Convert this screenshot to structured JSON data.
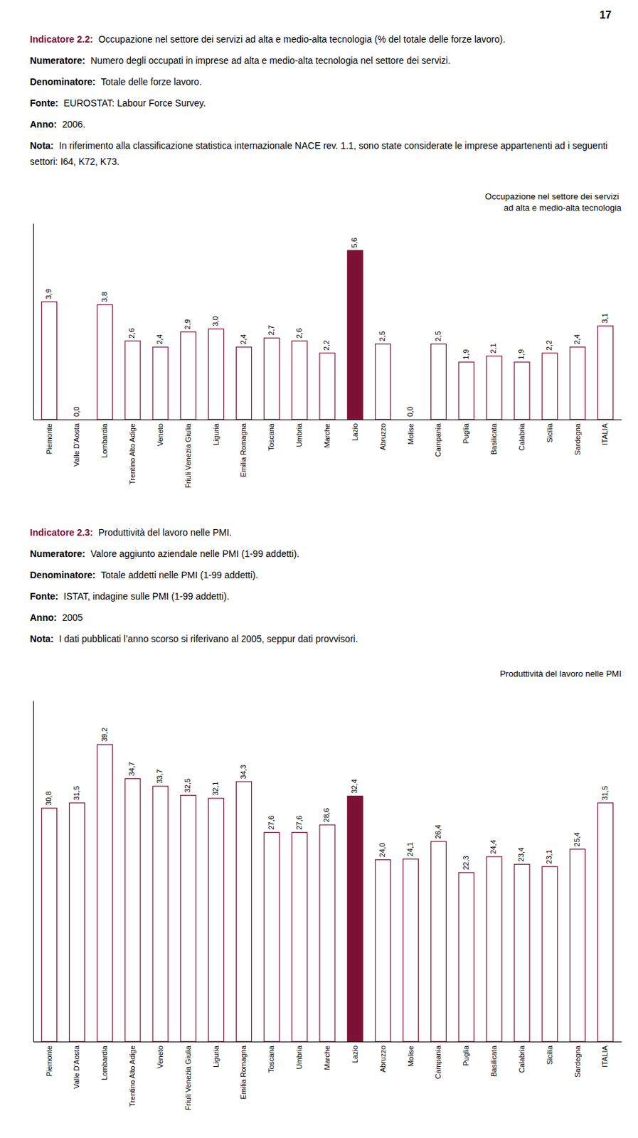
{
  "page_number": "17",
  "chart_data": [
    {
      "type": "bar",
      "title": "Occupazione nel settore dei servizi\nad alta e medio-alta tecnologia",
      "categories": [
        "Piemonte",
        "Valle D'Aosta",
        "Lombardia",
        "Trentino Alto Adige",
        "Veneto",
        "Friuli Venezia Giulia",
        "Liguria",
        "Emilia Romagna",
        "Toscana",
        "Umbria",
        "Marche",
        "Lazio",
        "Abruzzo",
        "Molise",
        "Campania",
        "Puglia",
        "Basilicata",
        "Calabria",
        "Sicilia",
        "Sardegna",
        "ITALIA"
      ],
      "values": [
        3.9,
        0.0,
        3.8,
        2.6,
        2.4,
        2.9,
        3.0,
        2.4,
        2.7,
        2.6,
        2.2,
        5.6,
        2.5,
        0.0,
        2.5,
        1.9,
        2.1,
        1.9,
        2.2,
        2.4,
        3.1
      ],
      "value_labels": [
        "3,9",
        "0,0",
        "3,8",
        "2,6",
        "2,4",
        "2,9",
        "3,0",
        "2,4",
        "2,7",
        "2,6",
        "2,2",
        "5,6",
        "2,5",
        "0,0",
        "2,5",
        "1,9",
        "2,1",
        "1,9",
        "2,2",
        "2,4",
        "3,1"
      ],
      "data_labels": true,
      "color": "#7d1035",
      "colors": [
        "#ffffff",
        "#ffffff",
        "#ffffff",
        "#ffffff",
        "#ffffff",
        "#ffffff",
        "#ffffff",
        "#ffffff",
        "#ffffff",
        "#ffffff",
        "#ffffff",
        "#7d1035",
        "#ffffff",
        "#ffffff",
        "#ffffff",
        "#ffffff",
        "#ffffff",
        "#ffffff",
        "#ffffff",
        "#ffffff",
        "#ffffff"
      ],
      "ylim": [
        0,
        6.5
      ],
      "tick_labels": "x",
      "grid": false,
      "annotations": [
        {
          "label": "Indicatore 2.2:",
          "text": "Occupazione nel settore dei servizi ad alta e medio-alta tecnologia (% del totale delle forze lavoro)."
        },
        {
          "label": "Numeratore:",
          "text": "Numero degli occupati in imprese ad alta e medio-alta tecnologia nel settore dei servizi."
        },
        {
          "label": "Denominatore:",
          "text": "Totale delle forze lavoro."
        },
        {
          "label": "Fonte:",
          "text": "EUROSTAT: Labour Force Survey."
        },
        {
          "label": "Anno:",
          "text": "2006."
        },
        {
          "label": "Nota:",
          "text": "In riferimento alla classificazione statistica internazionale NACE rev. 1.1, sono state considerate le imprese appartenenti ad i seguenti settori: I64, K72, K73."
        }
      ]
    },
    {
      "type": "bar",
      "title": "Produttività del lavoro nelle PMI",
      "categories": [
        "Piemonte",
        "Valle D'Aosta",
        "Lombardia",
        "Trentino Alto Adige",
        "Veneto",
        "Friuli Venezia Giulia",
        "Liguria",
        "Emilia Romagna",
        "Toscana",
        "Umbria",
        "Marche",
        "Lazio",
        "Abruzzo",
        "Molise",
        "Campania",
        "Puglia",
        "Basilicata",
        "Calabria",
        "Sicilia",
        "Sardegna",
        "ITALIA"
      ],
      "values": [
        30.8,
        31.5,
        39.2,
        34.7,
        33.7,
        32.5,
        32.1,
        34.3,
        27.6,
        27.6,
        28.6,
        32.4,
        24.0,
        24.1,
        26.4,
        22.3,
        24.4,
        23.4,
        23.1,
        25.4,
        31.5
      ],
      "value_labels": [
        "30,8",
        "31,5",
        "39,2",
        "34,7",
        "33,7",
        "32,5",
        "32,1",
        "34,3",
        "27,6",
        "27,6",
        "28,6",
        "32,4",
        "24,0",
        "24,1",
        "26,4",
        "22,3",
        "24,4",
        "23,4",
        "23,1",
        "25,4",
        "31,5"
      ],
      "data_labels": true,
      "color": "#7d1035",
      "colors": [
        "#ffffff",
        "#ffffff",
        "#ffffff",
        "#ffffff",
        "#ffffff",
        "#ffffff",
        "#ffffff",
        "#ffffff",
        "#ffffff",
        "#ffffff",
        "#ffffff",
        "#7d1035",
        "#ffffff",
        "#ffffff",
        "#ffffff",
        "#ffffff",
        "#ffffff",
        "#ffffff",
        "#ffffff",
        "#ffffff",
        "#ffffff"
      ],
      "ylim": [
        0,
        45
      ],
      "tick_labels": "x",
      "grid": false,
      "annotations": [
        {
          "label": "Indicatore 2.3:",
          "text": "Produttività del lavoro nelle PMI."
        },
        {
          "label": "Numeratore:",
          "text": "Valore aggiunto aziendale nelle PMI (1-99 addetti)."
        },
        {
          "label": "Denominatore:",
          "text": "Totale addetti nelle PMI (1-99 addetti)."
        },
        {
          "label": "Fonte:",
          "text": "ISTAT, indagine sulle PMI (1-99 addetti)."
        },
        {
          "label": "Anno:",
          "text": "2005"
        },
        {
          "label": "Nota:",
          "text": "I dati pubblicati l’anno scorso si riferivano al 2005, seppur dati provvisori."
        }
      ]
    }
  ]
}
